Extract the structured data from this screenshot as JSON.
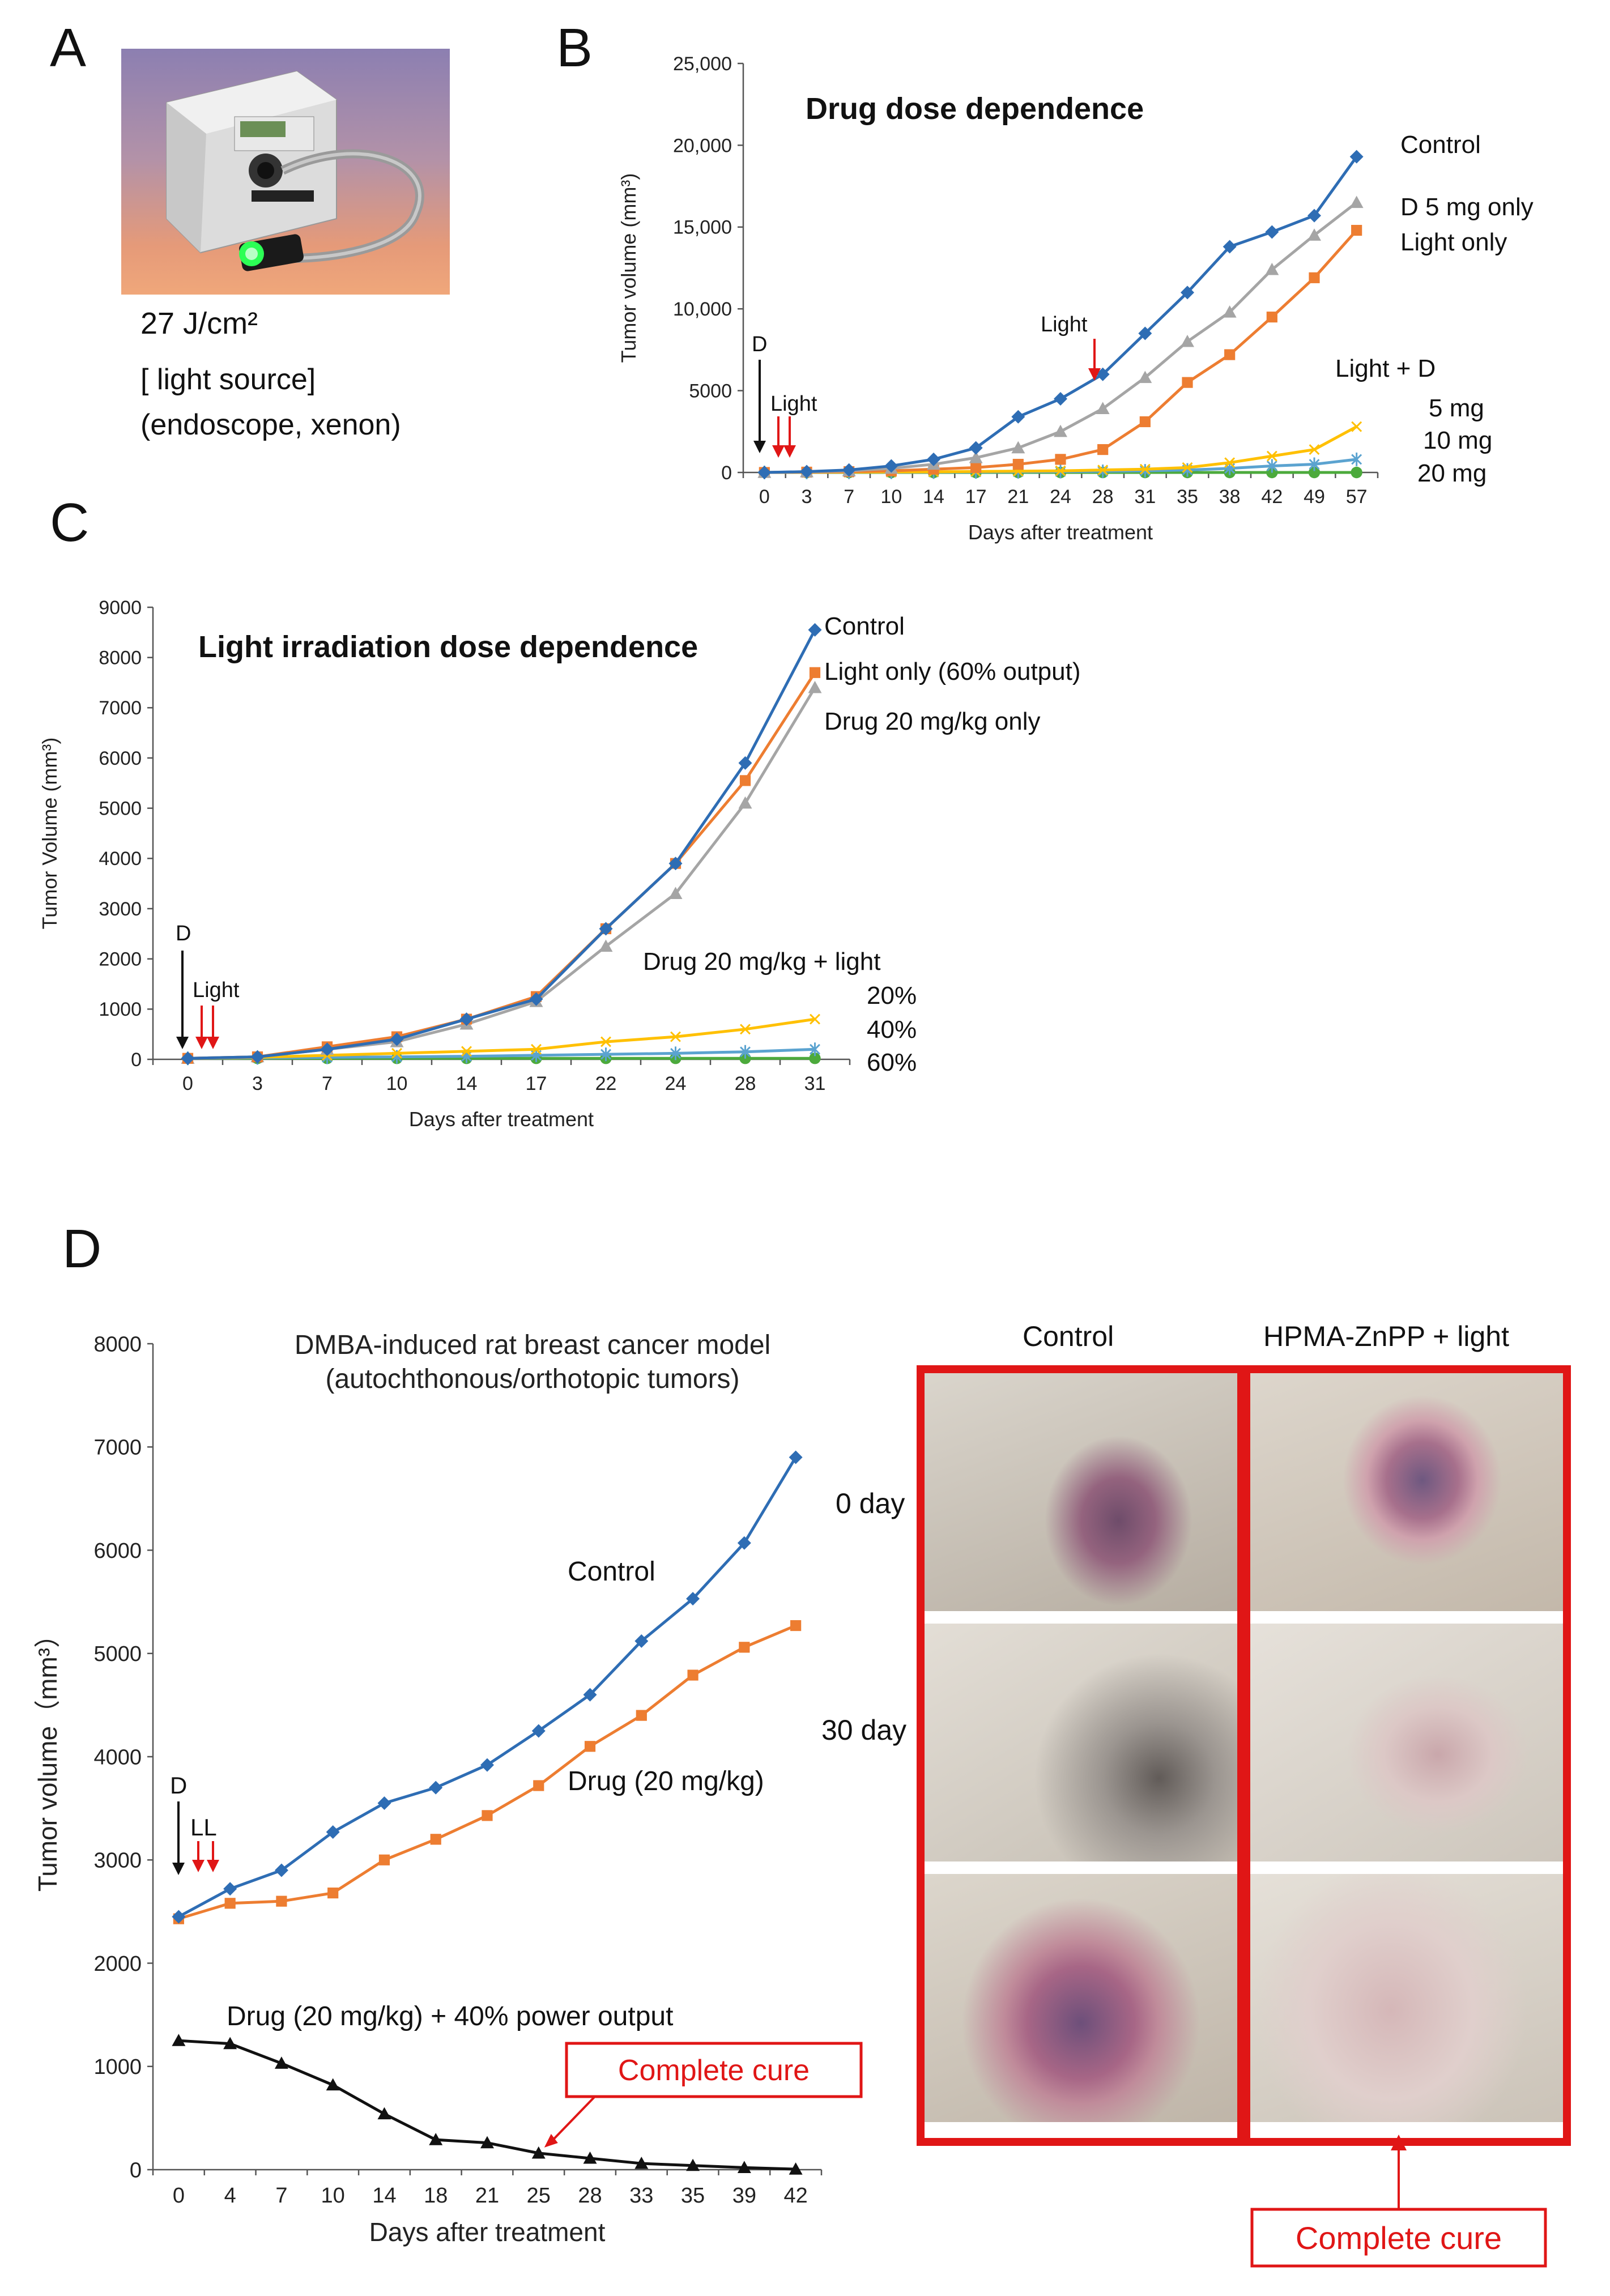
{
  "panel_a": {
    "letter": "A",
    "fluence": "27 J/cm²",
    "caption_line1": "[ light source]",
    "caption_line2": "(endoscope,  xenon)"
  },
  "panel_b": {
    "letter": "B"
  },
  "panel_c": {
    "letter": "C"
  },
  "panel_d": {
    "letter": "D",
    "photo_col_control": "Control",
    "photo_col_treated": "HPMA-ZnPP + light",
    "row_0day": "0 day",
    "row_30day": "30 day",
    "complete_cure_label": "Complete  cure"
  },
  "colors": {
    "control": "#2e6db4",
    "orange": "#ed7d31",
    "gray": "#a5a5a5",
    "yellow": "#ffc000",
    "lightblue": "#5ba3d0",
    "green": "#4caa3c",
    "black": "#111111",
    "red": "#e01616"
  },
  "chart_data": [
    {
      "id": "B",
      "type": "line",
      "title": "Drug dose dependence",
      "xlabel": "Days after treatment",
      "ylabel": "Tumor volume (mm³)",
      "categories": [
        "0",
        "3",
        "7",
        "10",
        "14",
        "17",
        "21",
        "24",
        "28",
        "31",
        "35",
        "38",
        "42",
        "49",
        "57"
      ],
      "ylim": [
        0,
        25000
      ],
      "yticks": [
        0,
        5000,
        10000,
        15000,
        20000,
        25000
      ],
      "ytick_labels": [
        "0",
        "5000",
        "10,000",
        "15,000",
        "20,000",
        "25,000"
      ],
      "series": [
        {
          "name": "Control",
          "label": "Control",
          "color": "#2e6db4",
          "marker": "diamond",
          "values": [
            0,
            50,
            150,
            400,
            800,
            1500,
            3400,
            4500,
            6000,
            8500,
            11000,
            13800,
            14700,
            15700,
            19300
          ]
        },
        {
          "name": "D 5 mg only",
          "label": "D 5 mg only",
          "color": "#a5a5a5",
          "marker": "triangle",
          "values": [
            0,
            40,
            100,
            250,
            500,
            900,
            1500,
            2500,
            3900,
            5800,
            8000,
            9800,
            12400,
            14500,
            16500
          ]
        },
        {
          "name": "Light only",
          "label": "Light only",
          "color": "#ed7d31",
          "marker": "square",
          "values": [
            0,
            20,
            50,
            100,
            200,
            300,
            500,
            800,
            1400,
            3100,
            5500,
            7200,
            9500,
            11900,
            14800
          ]
        },
        {
          "name": "Light + D 5 mg",
          "label": "5 mg",
          "color": "#ffc000",
          "marker": "x",
          "values": [
            0,
            10,
            20,
            30,
            40,
            60,
            80,
            100,
            150,
            200,
            300,
            600,
            1000,
            1400,
            2800
          ]
        },
        {
          "name": "Light + D 10 mg",
          "label": "10 mg",
          "color": "#5ba3d0",
          "marker": "asterisk",
          "values": [
            0,
            5,
            10,
            15,
            20,
            30,
            40,
            50,
            70,
            100,
            150,
            250,
            400,
            500,
            800
          ]
        },
        {
          "name": "Light + D 20 mg",
          "label": "20 mg",
          "color": "#4caa3c",
          "marker": "circle",
          "values": [
            0,
            0,
            0,
            0,
            0,
            0,
            0,
            0,
            0,
            0,
            0,
            0,
            0,
            0,
            0
          ]
        }
      ],
      "annotations": {
        "drug": "D",
        "light_first": "Light",
        "light_second": "Light",
        "group_header": "Light + D"
      }
    },
    {
      "id": "C",
      "type": "line",
      "title": "Light irradiation dose dependence",
      "xlabel": "Days after treatment",
      "ylabel": "Tumor Volume (mm³)",
      "categories": [
        "0",
        "3",
        "7",
        "10",
        "14",
        "17",
        "22",
        "24",
        "28",
        "31"
      ],
      "ylim": [
        0,
        9000
      ],
      "yticks": [
        0,
        1000,
        2000,
        3000,
        4000,
        5000,
        6000,
        7000,
        8000,
        9000
      ],
      "ytick_labels": [
        "0",
        "1000",
        "2000",
        "3000",
        "4000",
        "5000",
        "6000",
        "7000",
        "8000",
        "9000"
      ],
      "series": [
        {
          "name": "Control",
          "label": "Control",
          "color": "#2e6db4",
          "marker": "diamond",
          "values": [
            20,
            50,
            200,
            400,
            800,
            1200,
            2600,
            3900,
            5900,
            8550
          ]
        },
        {
          "name": "Light only (60% output)",
          "label": "Light only (60% output)",
          "color": "#ed7d31",
          "marker": "square",
          "values": [
            20,
            50,
            250,
            450,
            800,
            1250,
            2600,
            3900,
            5550,
            7700
          ]
        },
        {
          "name": "Drug 20 mg/kg only",
          "label": "Drug 20 mg/kg only",
          "color": "#a5a5a5",
          "marker": "triangle",
          "values": [
            20,
            50,
            200,
            350,
            700,
            1150,
            2250,
            3300,
            5100,
            7400
          ]
        },
        {
          "name": "Drug 20 mg/kg + light 20%",
          "label": "20%",
          "color": "#ffc000",
          "marker": "x",
          "values": [
            20,
            40,
            80,
            120,
            160,
            200,
            350,
            450,
            600,
            800
          ]
        },
        {
          "name": "Drug 20 mg/kg + light 40%",
          "label": "40%",
          "color": "#5ba3d0",
          "marker": "asterisk",
          "values": [
            20,
            30,
            40,
            50,
            60,
            80,
            100,
            120,
            150,
            200
          ]
        },
        {
          "name": "Drug 20 mg/kg + light 60%",
          "label": "60%",
          "color": "#4caa3c",
          "marker": "circle",
          "values": [
            20,
            20,
            20,
            20,
            20,
            20,
            20,
            20,
            20,
            20
          ]
        }
      ],
      "annotations": {
        "drug": "D",
        "light": "Light",
        "group_header": "Drug 20 mg/kg + light"
      }
    },
    {
      "id": "D",
      "type": "line",
      "title": "DMBA-induced rat breast cancer model",
      "subtitle": "(autochthonous/orthotopic tumors)",
      "xlabel": "Days after treatment",
      "ylabel": "Tumor volume（mm³）",
      "categories": [
        "0",
        "4",
        "7",
        "10",
        "14",
        "18",
        "21",
        "25",
        "28",
        "33",
        "35",
        "39",
        "42"
      ],
      "ylim": [
        0,
        8000
      ],
      "yticks": [
        0,
        1000,
        2000,
        3000,
        4000,
        5000,
        6000,
        7000,
        8000
      ],
      "ytick_labels": [
        "0",
        "1000",
        "2000",
        "3000",
        "4000",
        "5000",
        "6000",
        "7000",
        "8000"
      ],
      "series": [
        {
          "name": "Control",
          "label": "Control",
          "color": "#2e6db4",
          "marker": "diamond",
          "values": [
            2450,
            2720,
            2900,
            3270,
            3550,
            3700,
            3920,
            4250,
            4600,
            5120,
            5530,
            6070,
            6900
          ]
        },
        {
          "name": "Drug (20 mg/kg)",
          "label": "Drug (20 mg/kg)",
          "color": "#ed7d31",
          "marker": "square",
          "values": [
            2430,
            2580,
            2600,
            2680,
            3000,
            3200,
            3430,
            3720,
            4100,
            4400,
            4790,
            5060,
            5270
          ]
        },
        {
          "name": "Drug (20 mg/kg) + 40% power output",
          "label": "Drug (20 mg/kg) + 40% power output",
          "color": "#111111",
          "marker": "triangle",
          "values": [
            1250,
            1220,
            1030,
            820,
            540,
            290,
            260,
            160,
            110,
            60,
            40,
            20,
            5
          ]
        }
      ],
      "annotations": {
        "drug": "D",
        "light": "LL",
        "complete_cure": "Complete  cure"
      }
    }
  ]
}
